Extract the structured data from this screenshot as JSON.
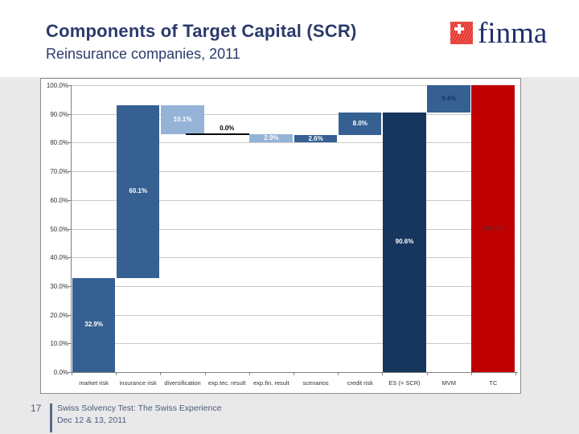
{
  "slide": {
    "title": "Components of Target Capital (SCR)",
    "subtitle": "Reinsurance companies, 2011",
    "page_number": "17",
    "footer": {
      "line1": "Swiss Solvency Test: The Swiss Experience",
      "line2": "Dec 12 & 13, 2011"
    }
  },
  "logo": {
    "brand": "finma",
    "square_color": "#E5352E",
    "text_color": "#1C2F6B"
  },
  "palette": {
    "increase": "#366092",
    "decrease": "#95B3D7",
    "subtotal": "#17365D",
    "total": "#C00000",
    "label_on_dark": "#FFFFFF",
    "label_zero": "#000000",
    "label_mvm": "#17365D",
    "label_total": "#7F1D1D",
    "gridline": "#C9C9C9",
    "axis": "#808080"
  },
  "chart_data": {
    "type": "bar",
    "subtype": "waterfall",
    "title": "",
    "xlabel": "",
    "ylabel": "",
    "ylim": [
      0,
      100
    ],
    "grid": true,
    "legend": false,
    "yticks": [
      {
        "value": 0,
        "label": "0.0%"
      },
      {
        "value": 10,
        "label": "10.0%"
      },
      {
        "value": 20,
        "label": "20.0%"
      },
      {
        "value": 30,
        "label": "30.0%"
      },
      {
        "value": 40,
        "label": "40.0%"
      },
      {
        "value": 50,
        "label": "50.0%"
      },
      {
        "value": 60,
        "label": "60.0%"
      },
      {
        "value": 70,
        "label": "70.0%"
      },
      {
        "value": 80,
        "label": "80.0%"
      },
      {
        "value": 90,
        "label": "90.0%"
      },
      {
        "value": 100,
        "label": "100.0%"
      }
    ],
    "categories": [
      "market risk",
      "insurance risk",
      "diversification",
      "exp.tec. result",
      "exp.fin. result",
      "scenarios",
      "credit risk",
      "ES (= SCR)",
      "MVM",
      "TC"
    ],
    "segments": [
      {
        "category": "market risk",
        "from": 0,
        "to": 32.9,
        "value": 32.9,
        "kind": "increase",
        "label": "32.9%",
        "label_color_key": "label_on_dark"
      },
      {
        "category": "insurance risk",
        "from": 32.9,
        "to": 93.0,
        "value": 60.1,
        "kind": "increase",
        "label": "60.1%",
        "label_color_key": "label_on_dark"
      },
      {
        "category": "diversification",
        "from": 82.9,
        "to": 93.0,
        "value": -10.1,
        "kind": "decrease",
        "label": "10.1%",
        "label_color_key": "label_on_dark"
      },
      {
        "category": "exp.tec. result",
        "from": 82.9,
        "to": 82.9,
        "value": 0.0,
        "kind": "zero",
        "label": "0.0%",
        "label_color_key": "label_zero"
      },
      {
        "category": "exp.fin. result",
        "from": 80.0,
        "to": 82.9,
        "value": -2.9,
        "kind": "decrease",
        "label": "2.9%",
        "label_color_key": "label_on_dark"
      },
      {
        "category": "scenarios",
        "from": 80.0,
        "to": 82.6,
        "value": 2.6,
        "kind": "increase",
        "label": "2.6%",
        "label_color_key": "label_on_dark"
      },
      {
        "category": "credit risk",
        "from": 82.6,
        "to": 90.6,
        "value": 8.0,
        "kind": "increase",
        "label": "8.0%",
        "label_color_key": "label_on_dark"
      },
      {
        "category": "ES (= SCR)",
        "from": 0,
        "to": 90.6,
        "value": 90.6,
        "kind": "subtotal",
        "label": "90.6%",
        "label_color_key": "label_on_dark"
      },
      {
        "category": "MVM",
        "from": 90.6,
        "to": 100.0,
        "value": 9.4,
        "kind": "increase",
        "label": "9.4%",
        "label_color_key": "label_mvm"
      },
      {
        "category": "TC",
        "from": 0,
        "to": 100.0,
        "value": 100.0,
        "kind": "total",
        "label": "100.0%",
        "label_color_key": "label_total"
      }
    ]
  }
}
